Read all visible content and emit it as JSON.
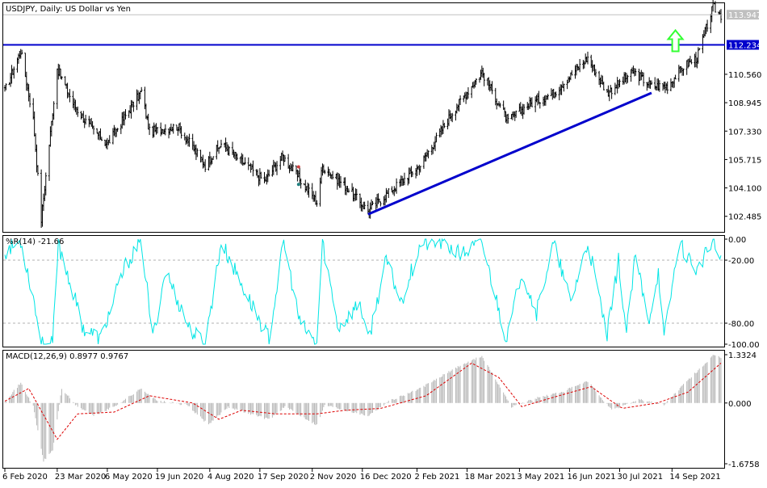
{
  "chart_data": [
    {
      "type": "candlestick",
      "title": "USDJPY, Daily:  US Dollar vs Yen",
      "y_ticks": [
        "102.485",
        "104.100",
        "105.715",
        "107.330",
        "108.945",
        "110.560"
      ],
      "ylim": [
        101.6,
        114.6
      ],
      "current_price": "113.947",
      "current_price_value": 113.947,
      "horizontal_line": {
        "value": 112.234,
        "label": "112.234",
        "color": "#0000cc"
      },
      "trendline": {
        "color": "#0000cc",
        "from": {
          "date": "2020-12-21",
          "value": 102.6
        },
        "to": {
          "date": "2021-08-27",
          "value": 109.5
        }
      },
      "arrow": {
        "direction": "up",
        "color": "#33ff33"
      },
      "ohlc_anchors": [
        {
          "date": "2020-02-06",
          "value": 109.6
        },
        {
          "date": "2020-02-20",
          "value": 111.9
        },
        {
          "date": "2020-03-02",
          "value": 108.0
        },
        {
          "date": "2020-03-09",
          "value": 102.3
        },
        {
          "date": "2020-03-23",
          "value": 110.9
        },
        {
          "date": "2020-04-06",
          "value": 108.9
        },
        {
          "date": "2020-04-20",
          "value": 107.6
        },
        {
          "date": "2020-05-06",
          "value": 106.6
        },
        {
          "date": "2020-06-05",
          "value": 109.6
        },
        {
          "date": "2020-06-12",
          "value": 107.3
        },
        {
          "date": "2020-07-07",
          "value": 107.6
        },
        {
          "date": "2020-07-31",
          "value": 105.4
        },
        {
          "date": "2020-08-14",
          "value": 106.6
        },
        {
          "date": "2020-09-21",
          "value": 104.5
        },
        {
          "date": "2020-10-07",
          "value": 105.9
        },
        {
          "date": "2020-11-06",
          "value": 103.3
        },
        {
          "date": "2020-11-11",
          "value": 105.3
        },
        {
          "date": "2020-12-01",
          "value": 104.2
        },
        {
          "date": "2020-12-21",
          "value": 102.8
        },
        {
          "date": "2021-01-11",
          "value": 104.0
        },
        {
          "date": "2021-02-05",
          "value": 105.4
        },
        {
          "date": "2021-03-05",
          "value": 108.4
        },
        {
          "date": "2021-03-31",
          "value": 110.7
        },
        {
          "date": "2021-04-23",
          "value": 107.9
        },
        {
          "date": "2021-05-10",
          "value": 108.8
        },
        {
          "date": "2021-06-02",
          "value": 109.5
        },
        {
          "date": "2021-07-02",
          "value": 111.5
        },
        {
          "date": "2021-07-19",
          "value": 109.5
        },
        {
          "date": "2021-08-11",
          "value": 110.7
        },
        {
          "date": "2021-08-27",
          "value": 109.9
        },
        {
          "date": "2021-09-10",
          "value": 109.9
        },
        {
          "date": "2021-09-24",
          "value": 111.0
        },
        {
          "date": "2021-10-06",
          "value": 111.5
        },
        {
          "date": "2021-10-20",
          "value": 114.4
        },
        {
          "date": "2021-10-27",
          "value": 113.9
        }
      ]
    },
    {
      "type": "line",
      "title": "%R(14) -21.66",
      "y_ticks": [
        "0.00",
        "-20.00",
        "-80.00",
        "-100.00"
      ],
      "ylim": [
        -100,
        0
      ],
      "levels": [
        -20,
        -80
      ],
      "color": "#00e5e5",
      "series_anchors": [
        {
          "date": "2020-02-06",
          "value": -12
        },
        {
          "date": "2020-02-20",
          "value": -2
        },
        {
          "date": "2020-03-02",
          "value": -55
        },
        {
          "date": "2020-03-09",
          "value": -100
        },
        {
          "date": "2020-03-19",
          "value": -100
        },
        {
          "date": "2020-03-24",
          "value": -5
        },
        {
          "date": "2020-04-03",
          "value": -40
        },
        {
          "date": "2020-04-15",
          "value": -85
        },
        {
          "date": "2020-04-30",
          "value": -95
        },
        {
          "date": "2020-05-22",
          "value": -25
        },
        {
          "date": "2020-06-05",
          "value": -2
        },
        {
          "date": "2020-06-15",
          "value": -95
        },
        {
          "date": "2020-06-26",
          "value": -30
        },
        {
          "date": "2020-07-17",
          "value": -85
        },
        {
          "date": "2020-07-31",
          "value": -100
        },
        {
          "date": "2020-08-14",
          "value": -3
        },
        {
          "date": "2020-09-04",
          "value": -50
        },
        {
          "date": "2020-09-25",
          "value": -95
        },
        {
          "date": "2020-10-08",
          "value": -2
        },
        {
          "date": "2020-10-22",
          "value": -80
        },
        {
          "date": "2020-11-06",
          "value": -100
        },
        {
          "date": "2020-11-11",
          "value": -3
        },
        {
          "date": "2020-11-25",
          "value": -85
        },
        {
          "date": "2020-12-14",
          "value": -60
        },
        {
          "date": "2020-12-21",
          "value": -98
        },
        {
          "date": "2021-01-06",
          "value": -20
        },
        {
          "date": "2021-01-19",
          "value": -60
        },
        {
          "date": "2021-02-05",
          "value": -5
        },
        {
          "date": "2021-02-25",
          "value": -3
        },
        {
          "date": "2021-03-12",
          "value": -15
        },
        {
          "date": "2021-03-31",
          "value": -3
        },
        {
          "date": "2021-04-22",
          "value": -97
        },
        {
          "date": "2021-05-05",
          "value": -30
        },
        {
          "date": "2021-05-18",
          "value": -70
        },
        {
          "date": "2021-06-02",
          "value": -4
        },
        {
          "date": "2021-06-17",
          "value": -60
        },
        {
          "date": "2021-07-02",
          "value": -3
        },
        {
          "date": "2021-07-19",
          "value": -92
        },
        {
          "date": "2021-07-29",
          "value": -20
        },
        {
          "date": "2021-08-05",
          "value": -90
        },
        {
          "date": "2021-08-13",
          "value": -15
        },
        {
          "date": "2021-08-24",
          "value": -80
        },
        {
          "date": "2021-09-02",
          "value": -30
        },
        {
          "date": "2021-09-07",
          "value": -95
        },
        {
          "date": "2021-09-20",
          "value": -3
        },
        {
          "date": "2021-10-06",
          "value": -30
        },
        {
          "date": "2021-10-20",
          "value": -2
        },
        {
          "date": "2021-10-27",
          "value": -22
        }
      ]
    },
    {
      "type": "bar",
      "title": "MACD(12,26,9) 0.8977 0.9767",
      "y_ticks": [
        "1.3324",
        "0.000",
        "-1.6758"
      ],
      "ylim": [
        -1.6758,
        1.3324
      ],
      "signal_color": "#dd0000",
      "histogram_anchors": [
        {
          "date": "2020-02-06",
          "value": 0.05
        },
        {
          "date": "2020-02-20",
          "value": 0.55
        },
        {
          "date": "2020-03-02",
          "value": -0.1
        },
        {
          "date": "2020-03-11",
          "value": -1.6
        },
        {
          "date": "2020-03-19",
          "value": -1.3
        },
        {
          "date": "2020-03-27",
          "value": 0.4
        },
        {
          "date": "2020-04-08",
          "value": -0.05
        },
        {
          "date": "2020-04-24",
          "value": -0.35
        },
        {
          "date": "2020-05-12",
          "value": -0.1
        },
        {
          "date": "2020-06-05",
          "value": 0.4
        },
        {
          "date": "2020-06-19",
          "value": 0.05
        },
        {
          "date": "2020-07-15",
          "value": -0.05
        },
        {
          "date": "2020-08-03",
          "value": -0.6
        },
        {
          "date": "2020-08-20",
          "value": -0.1
        },
        {
          "date": "2020-09-25",
          "value": -0.45
        },
        {
          "date": "2020-10-09",
          "value": -0.1
        },
        {
          "date": "2020-11-06",
          "value": -0.6
        },
        {
          "date": "2020-11-13",
          "value": -0.05
        },
        {
          "date": "2020-12-21",
          "value": -0.35
        },
        {
          "date": "2021-01-08",
          "value": 0.05
        },
        {
          "date": "2021-02-05",
          "value": 0.4
        },
        {
          "date": "2021-03-10",
          "value": 1.0
        },
        {
          "date": "2021-03-31",
          "value": 1.3
        },
        {
          "date": "2021-04-26",
          "value": -0.1
        },
        {
          "date": "2021-05-20",
          "value": 0.15
        },
        {
          "date": "2021-06-09",
          "value": 0.3
        },
        {
          "date": "2021-07-02",
          "value": 0.6
        },
        {
          "date": "2021-07-23",
          "value": -0.2
        },
        {
          "date": "2021-08-16",
          "value": 0.1
        },
        {
          "date": "2021-09-07",
          "value": -0.05
        },
        {
          "date": "2021-09-24",
          "value": 0.5
        },
        {
          "date": "2021-10-20",
          "value": 1.3
        },
        {
          "date": "2021-10-27",
          "value": 1.25
        }
      ],
      "signal_anchors": [
        {
          "date": "2020-02-06",
          "value": 0.05
        },
        {
          "date": "2020-02-27",
          "value": 0.4
        },
        {
          "date": "2020-03-23",
          "value": -1.0
        },
        {
          "date": "2020-04-10",
          "value": -0.3
        },
        {
          "date": "2020-05-12",
          "value": -0.25
        },
        {
          "date": "2020-06-12",
          "value": 0.2
        },
        {
          "date": "2020-07-20",
          "value": 0.0
        },
        {
          "date": "2020-08-12",
          "value": -0.45
        },
        {
          "date": "2020-09-01",
          "value": -0.2
        },
        {
          "date": "2020-10-01",
          "value": -0.3
        },
        {
          "date": "2020-11-06",
          "value": -0.3
        },
        {
          "date": "2020-12-01",
          "value": -0.2
        },
        {
          "date": "2021-01-01",
          "value": -0.15
        },
        {
          "date": "2021-02-10",
          "value": 0.2
        },
        {
          "date": "2021-03-22",
          "value": 1.1
        },
        {
          "date": "2021-04-15",
          "value": 0.7
        },
        {
          "date": "2021-05-05",
          "value": -0.1
        },
        {
          "date": "2021-06-01",
          "value": 0.15
        },
        {
          "date": "2021-07-05",
          "value": 0.45
        },
        {
          "date": "2021-08-01",
          "value": -0.15
        },
        {
          "date": "2021-09-01",
          "value": 0.0
        },
        {
          "date": "2021-09-28",
          "value": 0.3
        },
        {
          "date": "2021-10-27",
          "value": 1.1
        }
      ]
    }
  ],
  "time_axis": {
    "start": "2020-02-06",
    "end": "2021-10-27",
    "labels": [
      {
        "date": "2020-02-06",
        "label": "6 Feb 2020"
      },
      {
        "date": "2020-03-23",
        "label": "23 Mar 2020"
      },
      {
        "date": "2020-05-06",
        "label": "6 May 2020"
      },
      {
        "date": "2020-06-19",
        "label": "19 Jun 2020"
      },
      {
        "date": "2020-08-04",
        "label": "4 Aug 2020"
      },
      {
        "date": "2020-09-17",
        "label": "17 Sep 2020"
      },
      {
        "date": "2020-11-02",
        "label": "2 Nov 2020"
      },
      {
        "date": "2020-12-16",
        "label": "16 Dec 2020"
      },
      {
        "date": "2021-02-02",
        "label": "2 Feb 2021"
      },
      {
        "date": "2021-03-18",
        "label": "18 Mar 2021"
      },
      {
        "date": "2021-05-03",
        "label": "3 May 2021"
      },
      {
        "date": "2021-06-16",
        "label": "16 Jun 2021"
      },
      {
        "date": "2021-07-30",
        "label": "30 Jul 2021"
      },
      {
        "date": "2021-09-14",
        "label": "14 Sep 2021"
      }
    ]
  }
}
